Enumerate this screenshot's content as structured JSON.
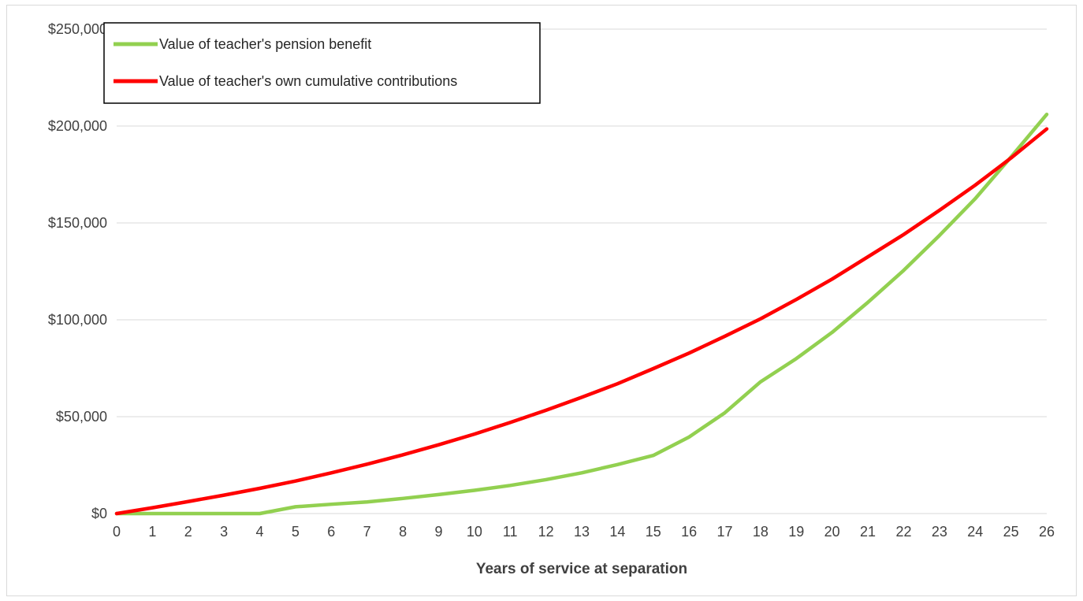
{
  "chart_data": {
    "type": "line",
    "title": "",
    "xlabel": "Years of service at separation",
    "ylabel": "",
    "x": [
      0,
      1,
      2,
      3,
      4,
      5,
      6,
      7,
      8,
      9,
      10,
      11,
      12,
      13,
      14,
      15,
      16,
      17,
      18,
      19,
      20,
      21,
      22,
      23,
      24,
      25,
      26
    ],
    "xlim": [
      0,
      26
    ],
    "ylim": [
      0,
      250000
    ],
    "yticks": [
      0,
      50000,
      100000,
      150000,
      200000,
      250000
    ],
    "ytick_labels": [
      "$0",
      "$50,000",
      "$100,000",
      "$150,000",
      "$200,000",
      "$250,000"
    ],
    "grid": "horizontal",
    "legend_position": "top-left",
    "series": [
      {
        "name": "Value of teacher's pension benefit",
        "color": "#92d050",
        "values": [
          0,
          0,
          0,
          0,
          0,
          3500,
          4800,
          6000,
          7800,
          9800,
          12000,
          14500,
          17500,
          21000,
          25300,
          30000,
          39500,
          52000,
          68000,
          80000,
          93500,
          109000,
          125500,
          143500,
          162500,
          184000,
          206000
        ]
      },
      {
        "name": "Value of teacher's own cumulative contributions",
        "color": "#ff0000",
        "values": [
          0,
          3000,
          6200,
          9500,
          13000,
          16800,
          21000,
          25500,
          30300,
          35500,
          41000,
          47000,
          53300,
          60000,
          67000,
          74800,
          82800,
          91500,
          100500,
          110500,
          121000,
          132500,
          144000,
          156500,
          169500,
          183500,
          198500
        ]
      }
    ]
  }
}
